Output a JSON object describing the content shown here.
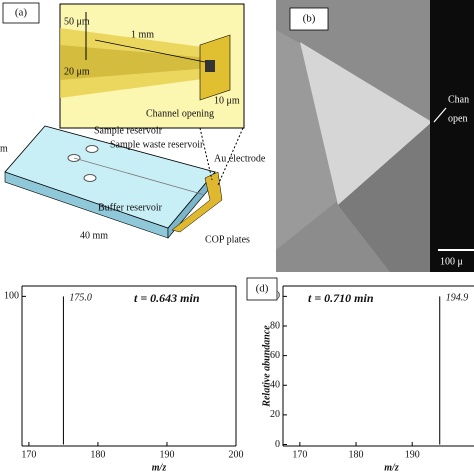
{
  "panel_a": {
    "label": "(a)",
    "dim_50": "50 μm",
    "dim_1mm": "1 mm",
    "dim_20": "20 μm",
    "dim_10": "10 μm",
    "channel_opening": "Channel opening",
    "sample_reservoir": "Sample reservoir",
    "sample_waste_reservoir": "Sample waste reservoir",
    "au_electrode": "Au electrode",
    "buffer_reservoir": "Buffer reservoir",
    "width": "40 mm",
    "cop_plates": "COP plates",
    "length_cut": "m"
  },
  "panel_b": {
    "label": "(b)",
    "channel_cut": "Chan",
    "opening_cut": "open",
    "scale_bar": "100 μ"
  },
  "chart_data": [
    {
      "type": "spectrum",
      "annotation": "t = 0.643 min",
      "xlabel": "m/z",
      "x": [
        175.0
      ],
      "x_labels": [
        "175.0"
      ],
      "values": [
        100
      ],
      "color": "#000000",
      "xlim": [
        169,
        200
      ],
      "xticks": [
        170,
        180,
        190,
        200
      ],
      "ylim": [
        -1,
        107
      ],
      "yticks": [
        100
      ]
    },
    {
      "type": "spectrum",
      "label": "(d)",
      "annotation": "t = 0.710 min",
      "xlabel": "m/z",
      "ylabel": "Relative abundance",
      "x": [
        194.9
      ],
      "x_labels": [
        "194.9"
      ],
      "values": [
        100
      ],
      "color": "#000000",
      "xlim": [
        167,
        201
      ],
      "xticks": [
        170,
        180,
        190
      ],
      "ylim": [
        -1,
        107
      ],
      "yticks": [
        0,
        20,
        40,
        60,
        80,
        100
      ]
    }
  ]
}
